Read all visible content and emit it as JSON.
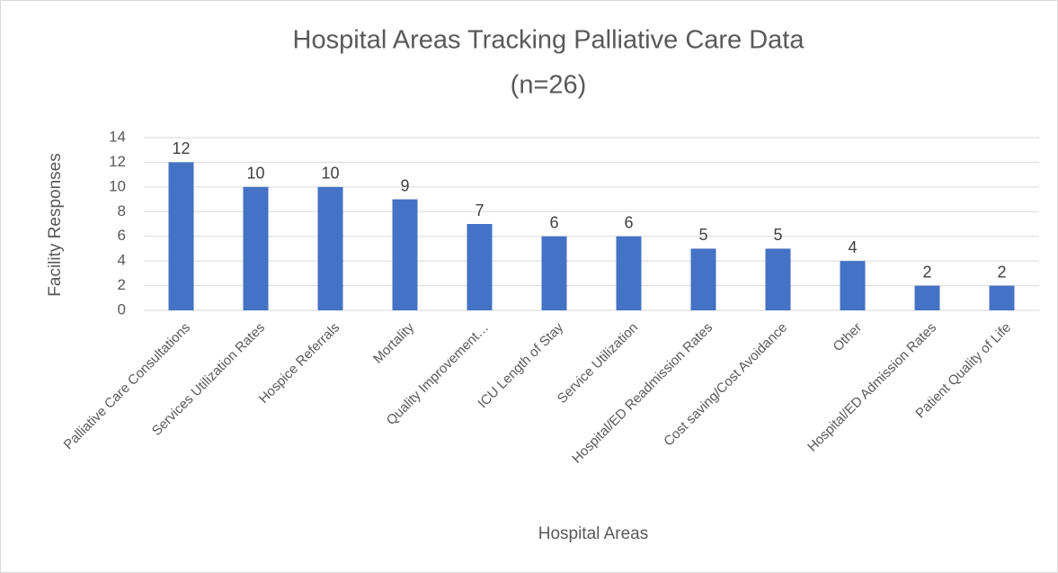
{
  "chart_data": {
    "type": "bar",
    "title": "Hospital Areas Tracking Palliative Care Data",
    "subtitle": "(n=26)",
    "x_label": "Hospital Areas",
    "y_label": "Facility Responses",
    "categories": [
      "Palliative Care Consultations",
      "Services Utilization Rates",
      "Hospice Referrals",
      "Mortality",
      "Quality Improvement…",
      "ICU Length of Stay",
      "Service Utilization",
      "Hospital/ED Readmission Rates",
      "Cost saving/Cost Avoidance",
      "Other",
      "Hospital/ED Admission Rates",
      "Patient Quality of Life"
    ],
    "values": [
      12,
      10,
      10,
      9,
      7,
      6,
      6,
      5,
      5,
      4,
      2,
      2
    ],
    "color": "#4472c4",
    "ylim": [
      0,
      14
    ],
    "yticks": [
      0,
      2,
      4,
      6,
      8,
      10,
      12,
      14
    ],
    "grid": true
  }
}
